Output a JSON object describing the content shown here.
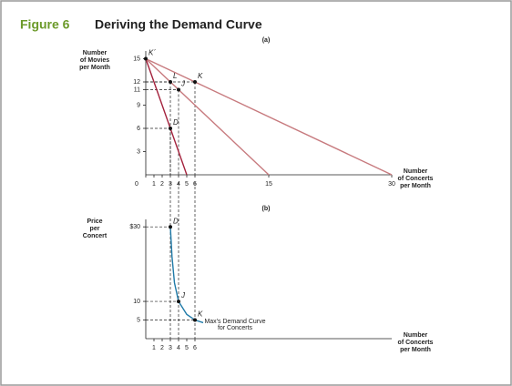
{
  "figure": {
    "label": "Figure 6",
    "title": "Deriving the Demand Curve"
  },
  "chart_data": [
    {
      "type": "line",
      "subtitle": "(a)",
      "ylabel": [
        "Number",
        "of Movies",
        "per Month"
      ],
      "xlabel": [
        "Number",
        "of Concerts",
        "per Month"
      ],
      "xlim": [
        0,
        30
      ],
      "ylim": [
        0,
        16
      ],
      "xticks": [
        0,
        1,
        2,
        3,
        4,
        5,
        6,
        15,
        30
      ],
      "yticks": [
        3,
        6,
        9,
        11,
        12,
        15
      ],
      "series": [
        {
          "color": "#a3213c",
          "x": [
            0,
            5
          ],
          "values": [
            15,
            0
          ]
        },
        {
          "color": "#c77a7e",
          "x": [
            0,
            15
          ],
          "values": [
            15,
            0
          ]
        },
        {
          "color": "#c77a7e",
          "x": [
            0,
            30
          ],
          "values": [
            15,
            0
          ]
        }
      ],
      "points": [
        {
          "label": "K´",
          "x": 0,
          "y": 15
        },
        {
          "label": "L",
          "x": 3,
          "y": 12
        },
        {
          "label": "J",
          "x": 4,
          "y": 11
        },
        {
          "label": "K",
          "x": 6,
          "y": 12
        },
        {
          "label": "D",
          "x": 3,
          "y": 6
        }
      ]
    },
    {
      "type": "line",
      "subtitle": "(b)",
      "ylabel": [
        "Price",
        "per",
        "Concert"
      ],
      "xlabel": [
        "Number",
        "of Concerts",
        "per Month"
      ],
      "xlim": [
        0,
        30
      ],
      "ylim": [
        0,
        32
      ],
      "xticks": [
        1,
        2,
        3,
        4,
        5,
        6
      ],
      "yticks": [
        {
          "value": 30,
          "label": "$30"
        },
        10,
        5
      ],
      "series": [
        {
          "color": "#1f7aa8",
          "x": [
            3,
            3.2,
            3.5,
            4,
            5,
            6,
            7
          ],
          "values": [
            30,
            22,
            15,
            10,
            6.5,
            5,
            4.3
          ]
        }
      ],
      "points": [
        {
          "label": "D",
          "x": 3,
          "y": 30
        },
        {
          "label": "J",
          "x": 4,
          "y": 10
        },
        {
          "label": "K",
          "x": 6,
          "y": 5
        }
      ],
      "annotation": [
        "Max's Demand Curve",
        "for Concerts"
      ]
    }
  ]
}
